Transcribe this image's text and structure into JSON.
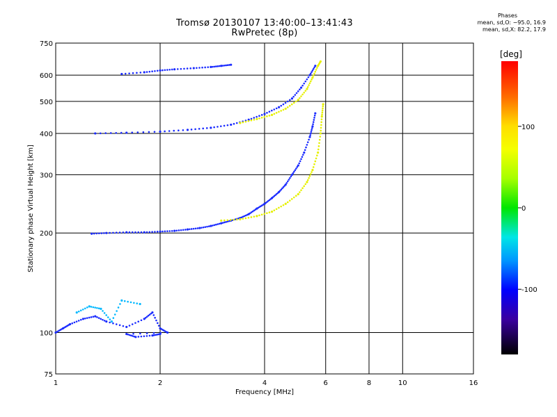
{
  "header": {
    "title_line1": "Tromsø 20130107 13:40:00–13:41:43",
    "title_line2": "RwPretec (8p)"
  },
  "phase_info": {
    "title": "Phases",
    "line_o": "mean, sd,O: −95.0, 16.9",
    "line_x": "mean, sd,X:  82.2, 17.9"
  },
  "colorbar": {
    "unit_label": "[deg]",
    "range": [
      -180,
      180
    ],
    "ticks": [
      "100",
      "0",
      "-100"
    ],
    "tick_values": [
      100,
      0,
      -100
    ]
  },
  "chart_data": {
    "type": "scatter",
    "xlabel": "Frequency [MHz]",
    "ylabel": "Stationary phase Virtual Height [km]",
    "xscale": "log",
    "yscale": "log",
    "xlim": [
      1,
      16
    ],
    "ylim": [
      75,
      750
    ],
    "xticks": [
      1,
      2,
      4,
      6,
      8,
      10,
      16
    ],
    "xtick_labels": [
      "1",
      "2",
      "4",
      "6",
      "8",
      "10",
      "16"
    ],
    "yticks": [
      75,
      100,
      200,
      300,
      400,
      500,
      600,
      750
    ],
    "ytick_labels": [
      "75",
      "100",
      "200",
      "300",
      "400",
      "500",
      "600",
      "750"
    ],
    "grid": true,
    "color_by": "phase (deg)",
    "series": [
      {
        "points": [
          [
            1.27,
            199
          ],
          [
            1.4,
            200
          ],
          [
            1.6,
            201
          ],
          [
            1.8,
            201
          ],
          [
            2.0,
            202
          ],
          [
            2.2,
            203
          ],
          [
            2.4,
            205
          ],
          [
            2.6,
            207
          ],
          [
            2.8,
            210
          ],
          [
            3.0,
            214
          ],
          [
            3.2,
            218
          ],
          [
            3.4,
            222
          ],
          [
            3.6,
            228
          ],
          [
            3.8,
            237
          ],
          [
            4.0,
            245
          ],
          [
            4.2,
            255
          ],
          [
            4.4,
            266
          ],
          [
            4.6,
            280
          ],
          [
            4.8,
            300
          ],
          [
            5.0,
            320
          ],
          [
            5.2,
            350
          ],
          [
            5.4,
            390
          ],
          [
            5.5,
            420
          ],
          [
            5.6,
            460
          ]
        ],
        "phase": -100
      },
      {
        "points": [
          [
            3.0,
            218
          ],
          [
            3.4,
            220
          ],
          [
            3.8,
            225
          ],
          [
            4.2,
            232
          ],
          [
            4.6,
            245
          ],
          [
            5.0,
            262
          ],
          [
            5.3,
            285
          ],
          [
            5.5,
            310
          ],
          [
            5.7,
            350
          ],
          [
            5.8,
            400
          ],
          [
            5.85,
            450
          ],
          [
            5.9,
            490
          ]
        ],
        "phase": 85
      },
      {
        "points": [
          [
            1.3,
            400
          ],
          [
            1.6,
            402
          ],
          [
            2.0,
            405
          ],
          [
            2.4,
            410
          ],
          [
            2.8,
            416
          ],
          [
            3.2,
            425
          ],
          [
            3.6,
            440
          ],
          [
            4.0,
            458
          ],
          [
            4.4,
            480
          ],
          [
            4.8,
            510
          ],
          [
            5.1,
            550
          ],
          [
            5.4,
            600
          ],
          [
            5.6,
            640
          ]
        ],
        "phase": -100
      },
      {
        "points": [
          [
            3.4,
            430
          ],
          [
            3.8,
            442
          ],
          [
            4.2,
            455
          ],
          [
            4.6,
            475
          ],
          [
            5.0,
            505
          ],
          [
            5.3,
            545
          ],
          [
            5.5,
            590
          ],
          [
            5.7,
            640
          ],
          [
            5.8,
            660
          ]
        ],
        "phase": 85
      },
      {
        "points": [
          [
            1.55,
            605
          ],
          [
            1.8,
            612
          ],
          [
            2.0,
            620
          ],
          [
            2.2,
            625
          ],
          [
            2.5,
            630
          ],
          [
            2.8,
            635
          ],
          [
            3.0,
            640
          ],
          [
            3.2,
            645
          ]
        ],
        "phase": -100
      },
      {
        "points": [
          [
            1.0,
            100
          ],
          [
            1.05,
            103
          ],
          [
            1.1,
            106
          ],
          [
            1.2,
            110
          ],
          [
            1.3,
            112
          ],
          [
            1.4,
            108
          ],
          [
            1.6,
            104
          ],
          [
            1.8,
            110
          ],
          [
            1.9,
            115
          ],
          [
            2.0,
            103
          ],
          [
            2.1,
            100
          ],
          [
            1.6,
            99
          ],
          [
            1.7,
            97
          ],
          [
            1.9,
            98
          ],
          [
            2.0,
            99
          ]
        ],
        "phase": -110
      },
      {
        "points": [
          [
            1.15,
            115
          ],
          [
            1.25,
            120
          ],
          [
            1.35,
            118
          ],
          [
            1.45,
            108
          ],
          [
            1.55,
            125
          ],
          [
            1.75,
            122
          ]
        ],
        "phase": -60
      }
    ]
  }
}
